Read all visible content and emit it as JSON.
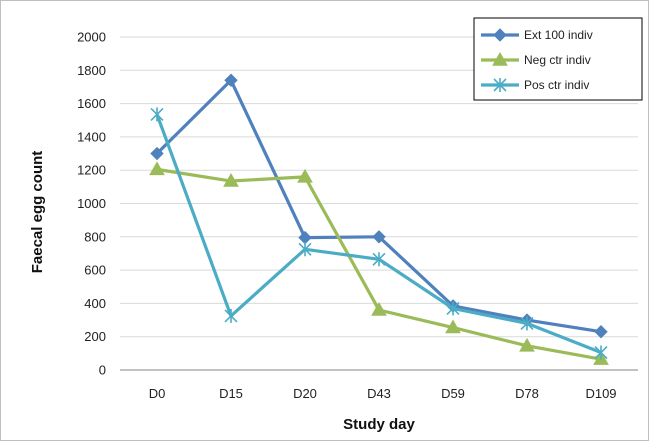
{
  "chart_data": {
    "type": "line",
    "categories": [
      "D0",
      "D15",
      "D20",
      "D43",
      "D59",
      "D78",
      "D109"
    ],
    "series": [
      {
        "name": "Ext 100 indiv",
        "values": [
          1300,
          1740,
          795,
          800,
          385,
          300,
          230
        ],
        "color": "#4f81bd",
        "marker": "diamond"
      },
      {
        "name": "Neg ctr indiv",
        "values": [
          1205,
          1135,
          1160,
          360,
          255,
          145,
          65
        ],
        "color": "#9bbb59",
        "marker": "triangle"
      },
      {
        "name": "Pos ctr indiv",
        "values": [
          1535,
          325,
          725,
          665,
          370,
          280,
          105
        ],
        "color": "#4bacc6",
        "marker": "star"
      }
    ],
    "y_ticks": [
      "0",
      "200",
      "400",
      "600",
      "800",
      "1000",
      "1200",
      "1400",
      "1600",
      "1800",
      "2000"
    ],
    "xlabel": "Study day",
    "ylabel": "Faecal egg count",
    "ylim": [
      0,
      2000
    ],
    "grid": true,
    "legend_position": "top-right"
  }
}
